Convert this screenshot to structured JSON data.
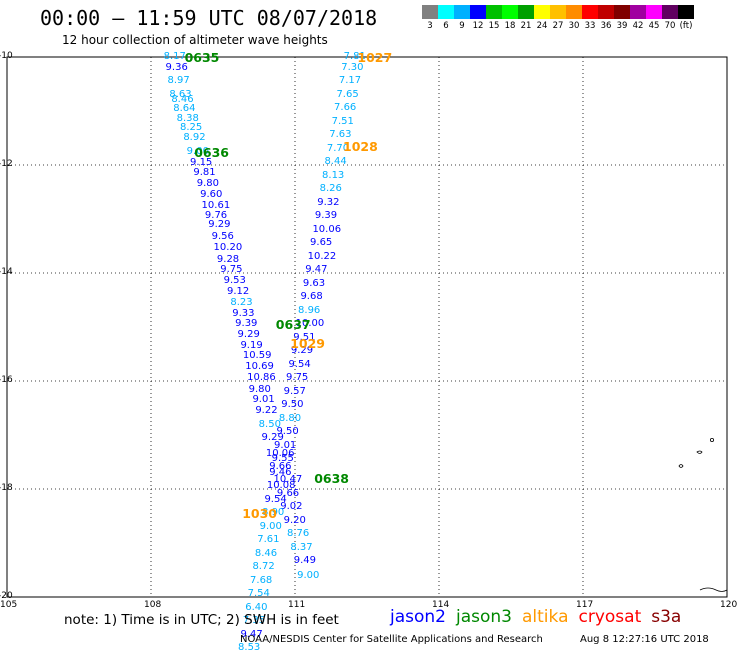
{
  "title": "00:00 – 11:59 UTC 08/07/2018",
  "subtitle": "12 hour collection of altimeter wave heights",
  "colorbar": {
    "colors": [
      "#808080",
      "#00ffff",
      "#00b0ff",
      "#0000ff",
      "#00c000",
      "#00ff00",
      "#00a000",
      "#ffff00",
      "#ffc000",
      "#ff8c00",
      "#ff0000",
      "#c00000",
      "#800000",
      "#a000a0",
      "#ff00ff",
      "#600060",
      "#000000"
    ],
    "labels": [
      "3",
      "6",
      "9",
      "12",
      "15",
      "18",
      "21",
      "24",
      "27",
      "30",
      "33",
      "36",
      "39",
      "42",
      "45",
      "70",
      "(ft)"
    ]
  },
  "axes": {
    "x_ticks": [
      "105",
      "108",
      "111",
      "114",
      "117",
      "120"
    ],
    "y_ticks": [
      "-10",
      "-12",
      "-14",
      "-16",
      "-18",
      "-20"
    ]
  },
  "tracks": [
    {
      "satellite": "jason2",
      "labels": [
        {
          "lon": 108.43,
          "lat": -10.0,
          "value": "8.17",
          "color": "#00b0ff"
        },
        {
          "lon": 108.47,
          "lat": -10.2,
          "value": "9.36",
          "color": "#0000ff"
        },
        {
          "lon": 108.51,
          "lat": -10.45,
          "value": "8.97",
          "color": "#00b0ff"
        },
        {
          "lon": 108.55,
          "lat": -10.7,
          "value": "8.63",
          "color": "#00b0ff"
        },
        {
          "lon": 108.59,
          "lat": -10.8,
          "value": "8.46",
          "color": "#00b0ff"
        },
        {
          "lon": 108.63,
          "lat": -10.96,
          "value": "8.64",
          "color": "#00b0ff"
        },
        {
          "lon": 108.7,
          "lat": -11.15,
          "value": "8.38",
          "color": "#00b0ff"
        },
        {
          "lon": 108.77,
          "lat": -11.32,
          "value": "8.25",
          "color": "#00b0ff"
        },
        {
          "lon": 108.84,
          "lat": -11.5,
          "value": "8.92",
          "color": "#00b0ff"
        },
        {
          "lon": 108.91,
          "lat": -11.76,
          "value": "9.00",
          "color": "#00b0ff"
        },
        {
          "lon": 108.98,
          "lat": -11.96,
          "value": "9.15",
          "color": "#0000ff"
        },
        {
          "lon": 109.05,
          "lat": -12.14,
          "value": "9.81",
          "color": "#0000ff"
        },
        {
          "lon": 109.12,
          "lat": -12.35,
          "value": "9.80",
          "color": "#0000ff"
        },
        {
          "lon": 109.19,
          "lat": -12.56,
          "value": "9.60",
          "color": "#0000ff"
        },
        {
          "lon": 109.22,
          "lat": -12.75,
          "value": "10.61",
          "color": "#0000ff"
        },
        {
          "lon": 109.29,
          "lat": -12.95,
          "value": "9.76",
          "color": "#0000ff"
        },
        {
          "lon": 109.36,
          "lat": -13.11,
          "value": "9.29",
          "color": "#0000ff"
        },
        {
          "lon": 109.43,
          "lat": -13.34,
          "value": "9.56",
          "color": "#0000ff"
        },
        {
          "lon": 109.47,
          "lat": -13.54,
          "value": "10.20",
          "color": "#0000ff"
        },
        {
          "lon": 109.54,
          "lat": -13.75,
          "value": "9.28",
          "color": "#0000ff"
        },
        {
          "lon": 109.61,
          "lat": -13.95,
          "value": "9.75",
          "color": "#0000ff"
        },
        {
          "lon": 109.68,
          "lat": -14.14,
          "value": "9.53",
          "color": "#0000ff"
        },
        {
          "lon": 109.75,
          "lat": -14.36,
          "value": "9.12",
          "color": "#0000ff"
        },
        {
          "lon": 109.82,
          "lat": -14.55,
          "value": "8.23",
          "color": "#00b0ff"
        },
        {
          "lon": 109.86,
          "lat": -14.76,
          "value": "9.33",
          "color": "#0000ff"
        },
        {
          "lon": 109.92,
          "lat": -14.95,
          "value": "9.39",
          "color": "#0000ff"
        },
        {
          "lon": 109.97,
          "lat": -15.14,
          "value": "9.29",
          "color": "#0000ff"
        },
        {
          "lon": 110.03,
          "lat": -15.36,
          "value": "9.19",
          "color": "#0000ff"
        },
        {
          "lon": 110.08,
          "lat": -15.54,
          "value": "10.59",
          "color": "#0000ff"
        },
        {
          "lon": 110.13,
          "lat": -15.74,
          "value": "10.69",
          "color": "#0000ff"
        },
        {
          "lon": 110.17,
          "lat": -15.94,
          "value": "10.86",
          "color": "#0000ff"
        },
        {
          "lon": 110.2,
          "lat": -16.16,
          "value": "9.80",
          "color": "#0000ff"
        },
        {
          "lon": 110.28,
          "lat": -16.36,
          "value": "9.01",
          "color": "#0000ff"
        },
        {
          "lon": 110.34,
          "lat": -16.56,
          "value": "9.22",
          "color": "#0000ff"
        },
        {
          "lon": 110.41,
          "lat": -16.82,
          "value": "8.50",
          "color": "#00b0ff"
        },
        {
          "lon": 110.47,
          "lat": -17.05,
          "value": "9.29",
          "color": "#0000ff"
        },
        {
          "lon": 110.56,
          "lat": -17.35,
          "value": "10.06",
          "color": "#0000ff"
        },
        {
          "lon": 110.63,
          "lat": -17.6,
          "value": "9.66",
          "color": "#0000ff"
        },
        {
          "lon": 110.72,
          "lat": -17.84,
          "value": "10.47",
          "color": "#0000ff"
        },
        {
          "lon": 110.79,
          "lat": -18.09,
          "value": "9.66",
          "color": "#0000ff"
        },
        {
          "lon": 110.86,
          "lat": -18.34,
          "value": "9.02",
          "color": "#0000ff"
        },
        {
          "lon": 110.93,
          "lat": -18.59,
          "value": "9.20",
          "color": "#0000ff"
        },
        {
          "lon": 111.0,
          "lat": -18.84,
          "value": "8.76",
          "color": "#00b0ff"
        },
        {
          "lon": 111.07,
          "lat": -19.09,
          "value": "8.37",
          "color": "#00b0ff"
        },
        {
          "lon": 111.14,
          "lat": -19.34,
          "value": "9.49",
          "color": "#0000ff"
        },
        {
          "lon": 111.21,
          "lat": -19.62,
          "value": "9.00",
          "color": "#00b0ff"
        }
      ]
    },
    {
      "satellite": "jason3",
      "labels": [
        {
          "lon": 112.18,
          "lat": -10.0,
          "value": "7.81",
          "color": "#00b0ff"
        },
        {
          "lon": 112.13,
          "lat": -10.2,
          "value": "7.30",
          "color": "#00b0ff"
        },
        {
          "lon": 112.08,
          "lat": -10.45,
          "value": "7.17",
          "color": "#00b0ff"
        },
        {
          "lon": 112.03,
          "lat": -10.7,
          "value": "7.65",
          "color": "#00b0ff"
        },
        {
          "lon": 111.98,
          "lat": -10.95,
          "value": "7.66",
          "color": "#00b0ff"
        },
        {
          "lon": 111.93,
          "lat": -11.2,
          "value": "7.51",
          "color": "#00b0ff"
        },
        {
          "lon": 111.88,
          "lat": -11.45,
          "value": "7.63",
          "color": "#00b0ff"
        },
        {
          "lon": 111.83,
          "lat": -11.7,
          "value": "7.70",
          "color": "#00b0ff"
        },
        {
          "lon": 111.78,
          "lat": -11.95,
          "value": "8.44",
          "color": "#00b0ff"
        },
        {
          "lon": 111.73,
          "lat": -12.2,
          "value": "8.13",
          "color": "#00b0ff"
        },
        {
          "lon": 111.68,
          "lat": -12.45,
          "value": "8.26",
          "color": "#00b0ff"
        },
        {
          "lon": 111.63,
          "lat": -12.7,
          "value": "9.32",
          "color": "#0000ff"
        },
        {
          "lon": 111.58,
          "lat": -12.95,
          "value": "9.39",
          "color": "#0000ff"
        },
        {
          "lon": 111.53,
          "lat": -13.2,
          "value": "10.06",
          "color": "#0000ff"
        },
        {
          "lon": 111.48,
          "lat": -13.45,
          "value": "9.65",
          "color": "#0000ff"
        },
        {
          "lon": 111.43,
          "lat": -13.7,
          "value": "10.22",
          "color": "#0000ff"
        },
        {
          "lon": 111.38,
          "lat": -13.95,
          "value": "9.47",
          "color": "#0000ff"
        },
        {
          "lon": 111.33,
          "lat": -14.2,
          "value": "9.63",
          "color": "#0000ff"
        },
        {
          "lon": 111.28,
          "lat": -14.45,
          "value": "9.68",
          "color": "#0000ff"
        },
        {
          "lon": 111.23,
          "lat": -14.7,
          "value": "8.96",
          "color": "#00b0ff"
        },
        {
          "lon": 111.18,
          "lat": -14.95,
          "value": "10.00",
          "color": "#0000ff"
        },
        {
          "lon": 111.13,
          "lat": -15.2,
          "value": "9.51",
          "color": "#0000ff"
        },
        {
          "lon": 111.08,
          "lat": -15.45,
          "value": "9.29",
          "color": "#0000ff"
        },
        {
          "lon": 111.03,
          "lat": -15.7,
          "value": "9.54",
          "color": "#0000ff"
        },
        {
          "lon": 110.98,
          "lat": -15.95,
          "value": "9.75",
          "color": "#0000ff"
        },
        {
          "lon": 110.93,
          "lat": -16.2,
          "value": "9.57",
          "color": "#0000ff"
        },
        {
          "lon": 110.88,
          "lat": -16.45,
          "value": "9.50",
          "color": "#0000ff"
        },
        {
          "lon": 110.83,
          "lat": -16.7,
          "value": "8.80",
          "color": "#00b0ff"
        },
        {
          "lon": 110.78,
          "lat": -16.95,
          "value": "9.50",
          "color": "#0000ff"
        },
        {
          "lon": 110.73,
          "lat": -17.2,
          "value": "9.01",
          "color": "#0000ff"
        },
        {
          "lon": 110.68,
          "lat": -17.45,
          "value": "9.55",
          "color": "#0000ff"
        },
        {
          "lon": 110.63,
          "lat": -17.7,
          "value": "9.46",
          "color": "#0000ff"
        },
        {
          "lon": 110.58,
          "lat": -17.95,
          "value": "10.08",
          "color": "#0000ff"
        },
        {
          "lon": 110.53,
          "lat": -18.2,
          "value": "9.54",
          "color": "#0000ff"
        },
        {
          "lon": 110.48,
          "lat": -18.45,
          "value": "8.90",
          "color": "#00b0ff"
        },
        {
          "lon": 110.43,
          "lat": -18.7,
          "value": "9.00",
          "color": "#00b0ff"
        },
        {
          "lon": 110.38,
          "lat": -18.95,
          "value": "7.61",
          "color": "#00b0ff"
        },
        {
          "lon": 110.33,
          "lat": -19.2,
          "value": "8.46",
          "color": "#00b0ff"
        },
        {
          "lon": 110.28,
          "lat": -19.45,
          "value": "8.72",
          "color": "#00b0ff"
        },
        {
          "lon": 110.23,
          "lat": -19.7,
          "value": "7.68",
          "color": "#00b0ff"
        },
        {
          "lon": 110.18,
          "lat": -19.95,
          "value": "7.54",
          "color": "#00b0ff"
        },
        {
          "lon": 110.13,
          "lat": -20.2,
          "value": "6.40",
          "color": "#00b0ff"
        },
        {
          "lon": 110.08,
          "lat": -20.45,
          "value": "7.35",
          "color": "#00b0ff"
        },
        {
          "lon": 110.03,
          "lat": -20.7,
          "value": "9.47",
          "color": "#0000ff"
        },
        {
          "lon": 109.98,
          "lat": -20.95,
          "value": "8.53",
          "color": "#00b0ff"
        }
      ]
    }
  ],
  "time_labels": [
    {
      "lon": 108.7,
      "lat": -10.0,
      "text": "0635",
      "color": "#008800"
    },
    {
      "lon": 108.9,
      "lat": -11.75,
      "text": "0636",
      "color": "#008800"
    },
    {
      "lon": 110.6,
      "lat": -14.95,
      "text": "0637",
      "color": "#008800"
    },
    {
      "lon": 111.4,
      "lat": -17.8,
      "text": "0638",
      "color": "#008800"
    },
    {
      "lon": 112.3,
      "lat": -10.0,
      "text": "1027",
      "color": "#ff9900"
    },
    {
      "lon": 112.0,
      "lat": -11.65,
      "text": "1028",
      "color": "#ff9900"
    },
    {
      "lon": 110.9,
      "lat": -15.3,
      "text": "1029",
      "color": "#ff9900"
    },
    {
      "lon": 109.9,
      "lat": -18.45,
      "text": "1030",
      "color": "#ff9900"
    }
  ],
  "note": "note: 1) Time is in UTC; 2) SWH is in feet",
  "legend": [
    {
      "name": "jason2",
      "color": "#0000ff"
    },
    {
      "name": "jason3",
      "color": "#008800"
    },
    {
      "name": "altika",
      "color": "#ff9900"
    },
    {
      "name": "cryosat",
      "color": "#ff0000"
    },
    {
      "name": "s3a",
      "color": "#880000"
    }
  ],
  "credit": "NOAA/NESDIS Center for Satellite Applications and Research",
  "timestamp": "Aug  8 12:27:16 UTC 2018"
}
